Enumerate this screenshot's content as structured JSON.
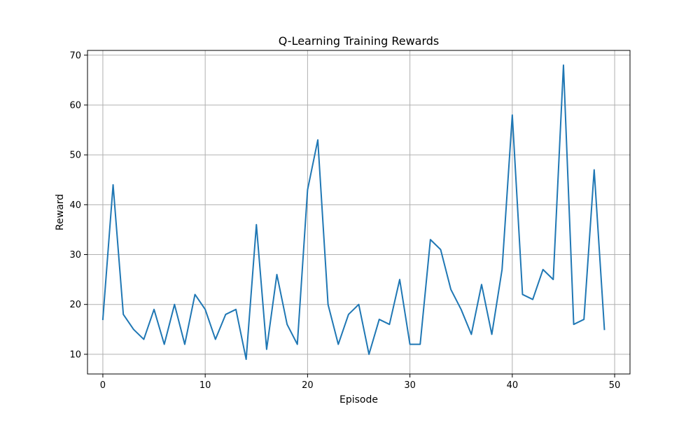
{
  "chart_data": {
    "type": "line",
    "title": "Q-Learning Training Rewards",
    "xlabel": "Episode",
    "ylabel": "Reward",
    "xlim": [
      -1.5,
      51.5
    ],
    "ylim": [
      6.05,
      70.95
    ],
    "xticks": [
      0,
      10,
      20,
      30,
      40,
      50
    ],
    "yticks": [
      10,
      20,
      30,
      40,
      50,
      60,
      70
    ],
    "grid": true,
    "legend": "none",
    "series": [
      {
        "color": "#1f77b4",
        "x": [
          0,
          1,
          2,
          3,
          4,
          5,
          6,
          7,
          8,
          9,
          10,
          11,
          12,
          13,
          14,
          15,
          16,
          17,
          18,
          19,
          20,
          21,
          22,
          23,
          24,
          25,
          26,
          27,
          28,
          29,
          30,
          31,
          32,
          33,
          34,
          35,
          36,
          37,
          38,
          39,
          40,
          41,
          42,
          43,
          44,
          45,
          46,
          47,
          48,
          49
        ],
        "values": [
          17,
          44,
          18,
          15,
          13,
          19,
          12,
          20,
          12,
          22,
          19,
          13,
          18,
          19,
          9,
          36,
          11,
          26,
          16,
          12,
          43,
          53,
          20,
          12,
          18,
          20,
          10,
          17,
          16,
          25,
          12,
          12,
          33,
          31,
          23,
          19,
          14,
          24,
          14,
          27,
          58,
          22,
          21,
          27,
          25,
          68,
          16,
          17,
          47,
          15
        ]
      }
    ]
  }
}
